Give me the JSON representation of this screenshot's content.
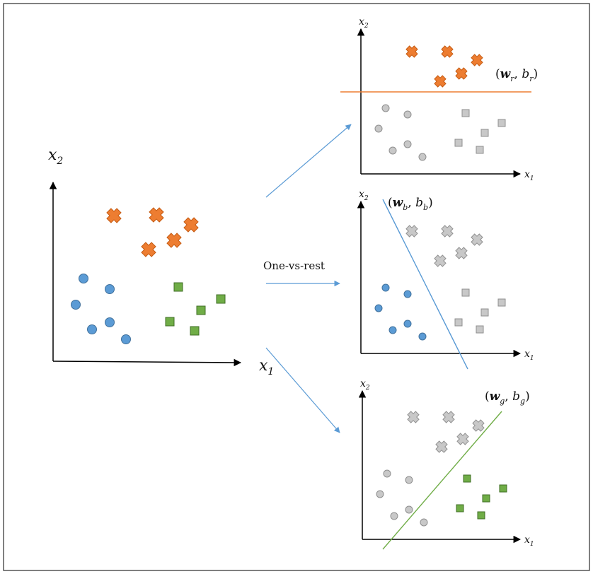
{
  "colors": {
    "orange": "#ED7D31",
    "orange_stroke": "#C55A11",
    "blue": "#5B9BD5",
    "blue_stroke": "#41719C",
    "green": "#70AD47",
    "green_stroke": "#3F6E24",
    "gray": "#C8C8C8",
    "gray_stroke": "#8F8F8F",
    "arrow": "#5B9BD5",
    "axis": "#000000",
    "frame": "#000000"
  },
  "icons": {
    "class_orange": "x-cross",
    "class_blue": "circle",
    "class_green": "square",
    "arrow": "arrow-right"
  },
  "center_label": "One-vs-rest",
  "main_plot": {
    "x_label": "x",
    "x_sub": "1",
    "y_label": "x",
    "y_sub": "2"
  },
  "plots": [
    {
      "id": "red",
      "x_label": "x",
      "x_sub": "1",
      "y_label": "x",
      "y_sub": "2",
      "param_w": "w",
      "param_w_sub": "r",
      "param_b": "b",
      "param_b_sub": "r",
      "highlight": "orange",
      "line_color": "#ED7D31"
    },
    {
      "id": "blue",
      "x_label": "x",
      "x_sub": "1",
      "y_label": "x",
      "y_sub": "2",
      "param_w": "w",
      "param_w_sub": "b",
      "param_b": "b",
      "param_b_sub": "b",
      "highlight": "blue",
      "line_color": "#5B9BD5"
    },
    {
      "id": "green",
      "x_label": "x",
      "x_sub": "1",
      "y_label": "x",
      "y_sub": "2",
      "param_w": "w",
      "param_w_sub": "g",
      "param_b": "b",
      "param_b_sub": "g",
      "highlight": "green",
      "line_color": "#70AD47"
    }
  ]
}
